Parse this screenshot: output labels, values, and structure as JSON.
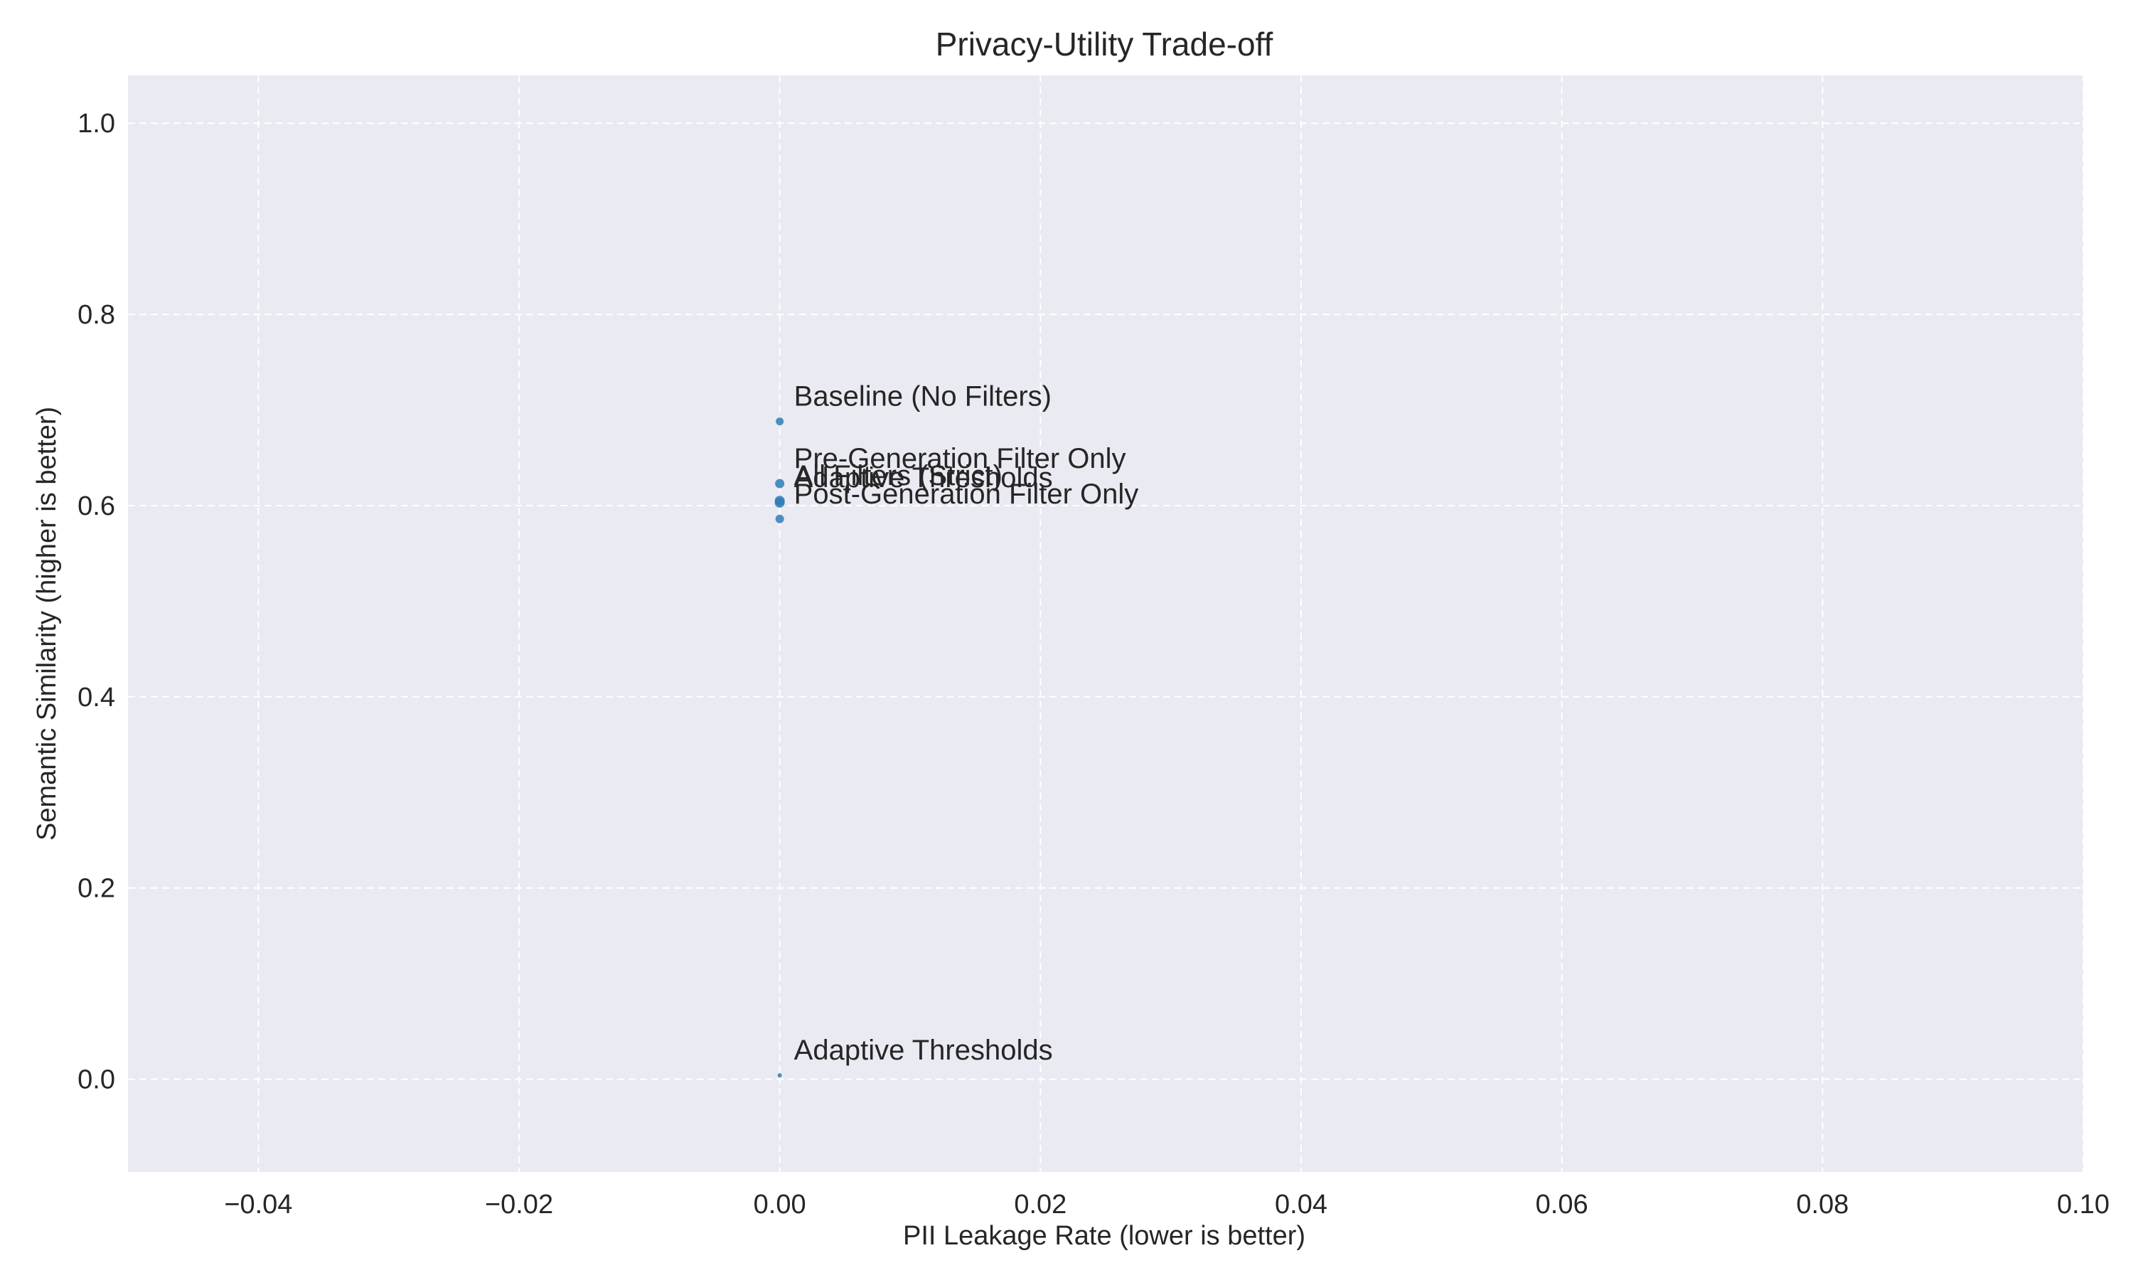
{
  "chart_data": {
    "type": "scatter",
    "title": "Privacy-Utility Trade-off",
    "xlabel": "PII Leakage Rate (lower is better)",
    "ylabel": "Semantic Similarity (higher is better)",
    "xlim": [
      -0.05,
      0.1
    ],
    "ylim": [
      -0.097,
      1.05
    ],
    "x_ticks": [
      -0.04,
      -0.02,
      0.0,
      0.02,
      0.04,
      0.06,
      0.08,
      0.1
    ],
    "x_tick_labels": [
      "−0.04",
      "−0.02",
      "0.00",
      "0.02",
      "0.04",
      "0.06",
      "0.08",
      "0.10"
    ],
    "y_ticks": [
      0.0,
      0.2,
      0.4,
      0.6,
      0.8,
      1.0
    ],
    "y_tick_labels": [
      "0.0",
      "0.2",
      "0.4",
      "0.6",
      "0.8",
      "1.0"
    ],
    "grid": true,
    "legend": "none",
    "colors": {
      "plot_background": "#eaeaf2",
      "grid": "#ffffff",
      "marker": "#2e7cb6",
      "text": "#262626"
    },
    "points": [
      {
        "label": "Baseline (No Filters)",
        "x": 0.0,
        "y": 0.688,
        "size": 5.5
      },
      {
        "label": "Pre-Generation Filter Only",
        "x": 0.0,
        "y": 0.623,
        "size": 6.5
      },
      {
        "label": "All Filters (Strict)",
        "x": 0.0,
        "y": 0.605,
        "size": 7
      },
      {
        "label": "Adaptive Thresholds",
        "x": 0.0,
        "y": 0.603,
        "size": 7
      },
      {
        "label": "Post-Generation Filter Only",
        "x": 0.0,
        "y": 0.586,
        "size": 6
      }
    ],
    "annotations": [
      {
        "text": "Baseline (No Filters)",
        "x": 0.0,
        "y": 0.688,
        "dx": 20,
        "dy": -22
      },
      {
        "text": "Pre-Generation Filter Only",
        "x": 0.0,
        "y": 0.623,
        "dx": 20,
        "dy": -22
      },
      {
        "text": "All Filters (Strict)",
        "x": 0.0,
        "y": 0.605,
        "dx": 20,
        "dy": -22
      },
      {
        "text": "Adaptive Thresholds",
        "x": 0.0,
        "y": 0.603,
        "dx": 20,
        "dy": -22
      },
      {
        "text": "Post-Generation Filter Only",
        "x": 0.0,
        "y": 0.586,
        "dx": 20,
        "dy": -22
      },
      {
        "text": "Adaptive Thresholds",
        "x": 0.0,
        "y": 0.004,
        "dx": 20,
        "dy": -22
      }
    ],
    "extra_points": [
      {
        "x": 0.0,
        "y": 0.004,
        "size": 3
      }
    ]
  }
}
